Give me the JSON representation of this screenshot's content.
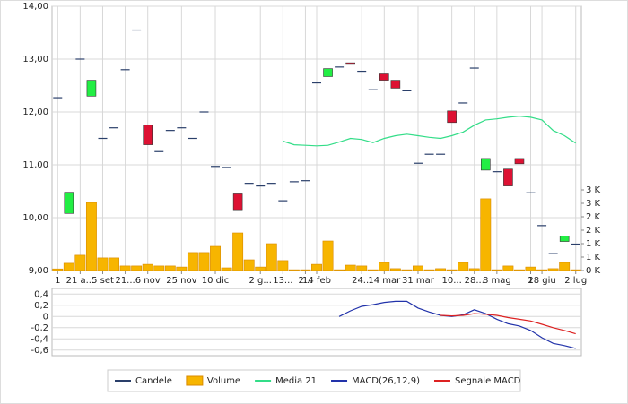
{
  "chart_data": [
    {
      "type": "candlestick",
      "categories": [
        "1",
        null,
        "21 a...",
        null,
        "5 set",
        null,
        "21...",
        null,
        "6 nov",
        null,
        null,
        "25 nov",
        null,
        null,
        "10 dic",
        null,
        null,
        null,
        "2 g...",
        null,
        "13...",
        null,
        "2...",
        "14 feb",
        null,
        null,
        null,
        "24...",
        null,
        "14 mar",
        null,
        null,
        "31 mar",
        null,
        null,
        "10...",
        null,
        "28...",
        null,
        "8 mag",
        null,
        null,
        "1",
        "28 giu",
        null,
        null,
        "2 lug"
      ],
      "series": [
        {
          "name": "Candele",
          "color": "#2a3f6a",
          "up_color": "#22ee44",
          "down_color": "#dd1133",
          "open": [
            12.27,
            10.08,
            13.0,
            12.3,
            11.5,
            11.7,
            12.8,
            13.55,
            11.75,
            11.25,
            11.65,
            11.7,
            11.5,
            12.0,
            10.97,
            10.95,
            10.45,
            10.65,
            10.6,
            10.65,
            10.32,
            10.68,
            10.7,
            12.55,
            12.67,
            12.85,
            12.93,
            12.77,
            12.42,
            12.72,
            12.6,
            12.4,
            11.03,
            11.2,
            11.2,
            12.02,
            12.17,
            12.83,
            10.9,
            10.87,
            10.92,
            11.12,
            10.47,
            9.85,
            9.32,
            9.55,
            9.5
          ],
          "close": [
            12.27,
            10.48,
            13.0,
            12.6,
            11.5,
            11.7,
            12.8,
            13.55,
            11.38,
            11.25,
            11.65,
            11.7,
            11.5,
            12.0,
            10.97,
            10.95,
            10.15,
            10.65,
            10.6,
            10.65,
            10.32,
            10.68,
            10.7,
            12.55,
            12.82,
            12.85,
            12.9,
            12.77,
            12.42,
            12.6,
            12.45,
            12.4,
            11.03,
            11.2,
            11.2,
            11.8,
            12.17,
            12.83,
            11.12,
            10.87,
            10.6,
            11.02,
            10.47,
            9.85,
            9.32,
            9.65,
            9.5
          ]
        },
        {
          "name": "Volume",
          "type": "bar",
          "axis": "y2",
          "color": "#f7b500",
          "values": [
            60,
            270,
            570,
            2530,
            470,
            470,
            170,
            170,
            230,
            170,
            170,
            130,
            670,
            670,
            900,
            100,
            1400,
            400,
            130,
            1000,
            370,
            30,
            30,
            230,
            1100,
            30,
            200,
            170,
            30,
            300,
            70,
            30,
            170,
            30,
            70,
            30,
            300,
            70,
            2670,
            30,
            170,
            30,
            130,
            30,
            70,
            300,
            30
          ]
        },
        {
          "name": "Media 21",
          "type": "line",
          "color": "#33dd88",
          "values": [
            null,
            null,
            null,
            null,
            null,
            null,
            null,
            null,
            null,
            null,
            null,
            null,
            null,
            null,
            null,
            null,
            null,
            null,
            null,
            null,
            11.45,
            11.38,
            11.37,
            11.36,
            11.37,
            11.43,
            11.5,
            11.48,
            11.42,
            11.5,
            11.55,
            11.58,
            11.55,
            11.52,
            11.5,
            11.55,
            11.62,
            11.75,
            11.85,
            11.87,
            11.9,
            11.92,
            11.9,
            11.85,
            11.65,
            11.55,
            11.41
          ]
        }
      ],
      "ylim": [
        9,
        14
      ],
      "yticks": [
        {
          "value": 9,
          "label": "9,00"
        },
        {
          "value": 10,
          "label": "10,00"
        },
        {
          "value": 11,
          "label": "11,00"
        },
        {
          "value": 12,
          "label": "12,00"
        },
        {
          "value": 13,
          "label": "13,00"
        },
        {
          "value": 14,
          "label": "14,00"
        }
      ],
      "y2lim": [
        0,
        9833
      ],
      "y2ticks": [
        {
          "value": 0,
          "label": "0 K"
        },
        {
          "value": 500,
          "label": "1 K"
        },
        {
          "value": 1000,
          "label": "1 K"
        },
        {
          "value": 1500,
          "label": "2 K"
        },
        {
          "value": 2000,
          "label": "2 K"
        },
        {
          "value": 2500,
          "label": "3 K"
        },
        {
          "value": 3000,
          "label": "3 K"
        }
      ],
      "grid": true
    },
    {
      "type": "line",
      "series": [
        {
          "name": "MACD(26,12,9)",
          "color": "#2233aa",
          "values": [
            null,
            null,
            null,
            null,
            null,
            null,
            null,
            null,
            null,
            null,
            null,
            null,
            null,
            null,
            null,
            null,
            null,
            null,
            null,
            null,
            null,
            null,
            null,
            null,
            null,
            0.0,
            0.1,
            0.18,
            0.21,
            0.25,
            0.27,
            0.27,
            0.15,
            0.08,
            0.02,
            0.0,
            0.03,
            0.12,
            0.05,
            -0.05,
            -0.13,
            -0.17,
            -0.25,
            -0.38,
            -0.48,
            -0.52,
            -0.57
          ]
        },
        {
          "name": "Segnale MACD",
          "color": "#dd2222",
          "values": [
            null,
            null,
            null,
            null,
            null,
            null,
            null,
            null,
            null,
            null,
            null,
            null,
            null,
            null,
            null,
            null,
            null,
            null,
            null,
            null,
            null,
            null,
            null,
            null,
            null,
            null,
            null,
            null,
            null,
            null,
            null,
            null,
            null,
            null,
            0.02,
            0.01,
            0.02,
            0.05,
            0.04,
            0.02,
            -0.02,
            -0.05,
            -0.08,
            -0.14,
            -0.2,
            -0.25,
            -0.31
          ]
        }
      ],
      "ylim": [
        -0.7,
        0.5
      ],
      "yticks": [
        {
          "value": -0.6,
          "label": "-0,6"
        },
        {
          "value": -0.4,
          "label": "-0,4"
        },
        {
          "value": -0.2,
          "label": "-0,2"
        },
        0,
        {
          "value": 0.2,
          "label": "0,2"
        },
        {
          "value": 0.4,
          "label": "0,4"
        }
      ],
      "grid": true
    }
  ],
  "legend": "bottom"
}
